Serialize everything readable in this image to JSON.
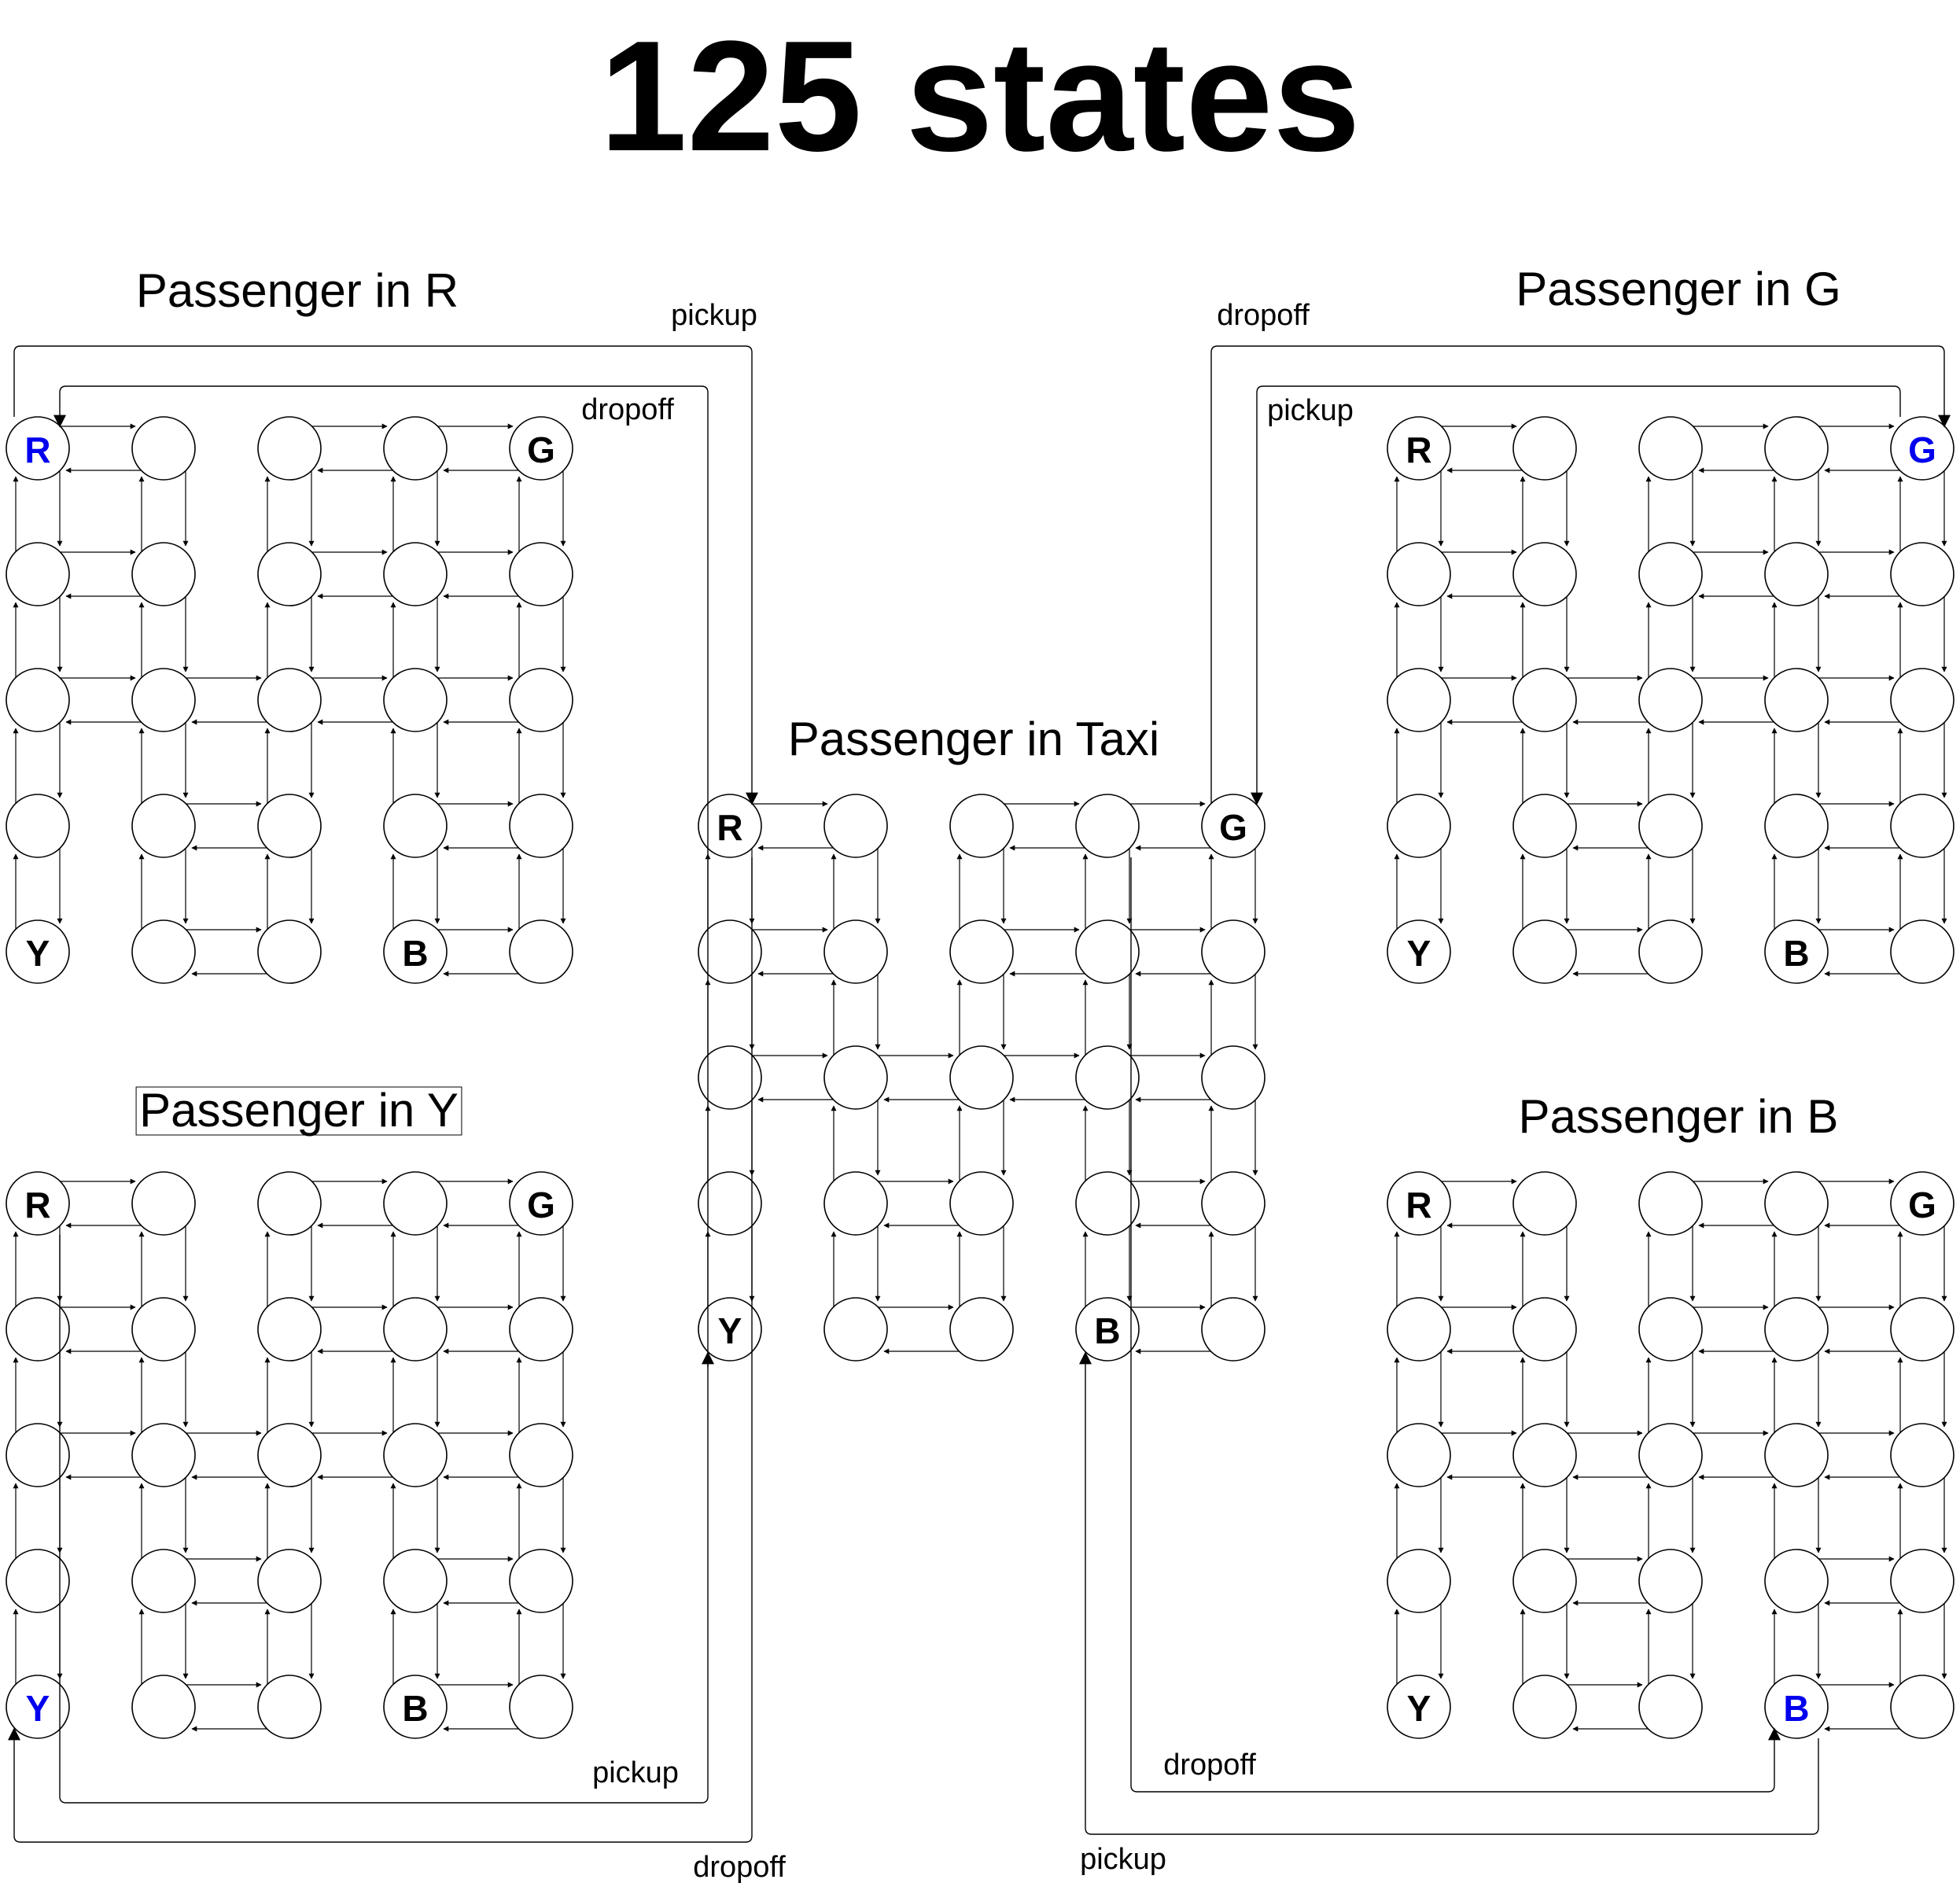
{
  "title": "125 states",
  "colors": {
    "stroke": "#000000",
    "highlight": "#0000ee",
    "text": "#000000"
  },
  "grid": {
    "rows": 5,
    "cols": 5,
    "landmarks": [
      {
        "label": "R",
        "row": 0,
        "col": 0
      },
      {
        "label": "G",
        "row": 0,
        "col": 4
      },
      {
        "label": "Y",
        "row": 4,
        "col": 0
      },
      {
        "label": "B",
        "row": 4,
        "col": 3
      }
    ],
    "walls": [
      {
        "between": [
          [
            0,
            1
          ],
          [
            0,
            2
          ]
        ]
      },
      {
        "between": [
          [
            1,
            1
          ],
          [
            1,
            2
          ]
        ]
      },
      {
        "between": [
          [
            3,
            0
          ],
          [
            3,
            1
          ]
        ]
      },
      {
        "between": [
          [
            4,
            0
          ],
          [
            4,
            1
          ]
        ]
      },
      {
        "between": [
          [
            3,
            2
          ],
          [
            3,
            3
          ]
        ]
      },
      {
        "between": [
          [
            4,
            2
          ],
          [
            4,
            3
          ]
        ]
      }
    ]
  },
  "groups": [
    {
      "id": "passenger-in-r",
      "label": "Passenger in R",
      "highlight": "R"
    },
    {
      "id": "passenger-in-g",
      "label": "Passenger in G",
      "highlight": "G"
    },
    {
      "id": "passenger-in-taxi",
      "label": "Passenger in Taxi",
      "highlight": ""
    },
    {
      "id": "passenger-in-y",
      "label": "Passenger in Y",
      "highlight": "Y"
    },
    {
      "id": "passenger-in-b",
      "label": "Passenger in B",
      "highlight": "B"
    }
  ],
  "connections": [
    {
      "id": "r-pickup",
      "from": "passenger-in-r",
      "to": "passenger-in-taxi",
      "label": "pickup"
    },
    {
      "id": "r-dropoff",
      "from": "passenger-in-taxi",
      "to": "passenger-in-r",
      "label": "dropoff"
    },
    {
      "id": "g-dropoff",
      "from": "passenger-in-taxi",
      "to": "passenger-in-g",
      "label": "dropoff"
    },
    {
      "id": "g-pickup",
      "from": "passenger-in-g",
      "to": "passenger-in-taxi",
      "label": "pickup"
    },
    {
      "id": "y-pickup",
      "from": "passenger-in-y",
      "to": "passenger-in-taxi",
      "label": "pickup"
    },
    {
      "id": "y-dropoff",
      "from": "passenger-in-taxi",
      "to": "passenger-in-y",
      "label": "dropoff"
    },
    {
      "id": "b-dropoff",
      "from": "passenger-in-taxi",
      "to": "passenger-in-b",
      "label": "dropoff"
    },
    {
      "id": "b-pickup",
      "from": "passenger-in-b",
      "to": "passenger-in-taxi",
      "label": "pickup"
    }
  ]
}
